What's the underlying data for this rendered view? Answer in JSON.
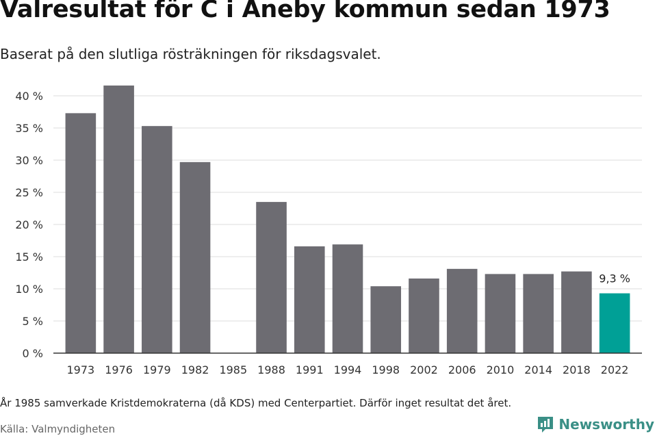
{
  "header": {
    "title": "Valresultat för C i Aneby kommun sedan 1973",
    "subtitle": "Baserat på den slutliga rösträkningen för riksdagsvalet."
  },
  "footer": {
    "note": "År 1985 samverkade Kristdemokraterna (då KDS) med Centerpartiet. Därför inget resultat det året.",
    "source": "Källa: Valmyndigheten",
    "brand": "Newsworthy"
  },
  "colors": {
    "bar": "#6d6c72",
    "highlight": "#00a096",
    "grid": "#dddddd",
    "axis": "#333333",
    "brand": "#3a8f86"
  },
  "chart_data": {
    "type": "bar",
    "categories": [
      "1973",
      "1976",
      "1979",
      "1982",
      "1985",
      "1988",
      "1991",
      "1994",
      "1998",
      "2002",
      "2006",
      "2010",
      "2014",
      "2018",
      "2022"
    ],
    "values": [
      37.3,
      41.6,
      35.3,
      29.7,
      null,
      23.5,
      16.6,
      16.9,
      10.4,
      11.6,
      13.1,
      12.3,
      12.3,
      12.7,
      9.3
    ],
    "ylim": [
      0,
      40
    ],
    "yticks": [
      0,
      5,
      10,
      15,
      20,
      25,
      30,
      35,
      40
    ],
    "ytick_labels": [
      "0 %",
      "5 %",
      "10 %",
      "15 %",
      "20 %",
      "25 %",
      "30 %",
      "35 %",
      "40 %"
    ],
    "highlight_index": 14,
    "data_labels": [
      {
        "index": 14,
        "text": "9,3 %"
      }
    ],
    "xlabel": "",
    "ylabel": "",
    "grid": true,
    "legend": "none"
  }
}
